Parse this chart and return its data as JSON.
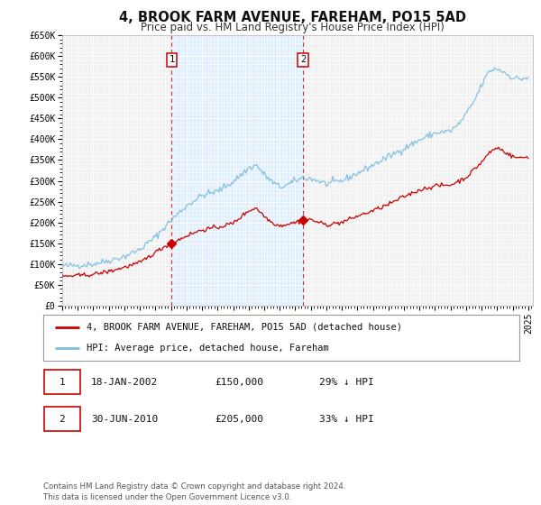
{
  "title": "4, BROOK FARM AVENUE, FAREHAM, PO15 5AD",
  "subtitle": "Price paid vs. HM Land Registry's House Price Index (HPI)",
  "ylim": [
    0,
    650000
  ],
  "yticks": [
    0,
    50000,
    100000,
    150000,
    200000,
    250000,
    300000,
    350000,
    400000,
    450000,
    500000,
    550000,
    600000,
    650000
  ],
  "ytick_labels": [
    "£0",
    "£50K",
    "£100K",
    "£150K",
    "£200K",
    "£250K",
    "£300K",
    "£350K",
    "£400K",
    "£450K",
    "£500K",
    "£550K",
    "£600K",
    "£650K"
  ],
  "xlim_start": 1995.0,
  "xlim_end": 2025.3,
  "background_color": "#ffffff",
  "plot_bg_color": "#f0f0f0",
  "grid_color": "#ffffff",
  "hpi_color": "#7fbfdf",
  "price_color": "#cc0000",
  "marker_color": "#cc0000",
  "sale1_x": 2002.05,
  "sale1_y": 150000,
  "sale1_label": "1",
  "sale2_x": 2010.5,
  "sale2_y": 205000,
  "sale2_label": "2",
  "vline_color": "#cc0000",
  "shaded_color": "#ddeeff",
  "legend_label_price": "4, BROOK FARM AVENUE, FAREHAM, PO15 5AD (detached house)",
  "legend_label_hpi": "HPI: Average price, detached house, Fareham",
  "table_row1": [
    "1",
    "18-JAN-2002",
    "£150,000",
    "29% ↓ HPI"
  ],
  "table_row2": [
    "2",
    "30-JUN-2010",
    "£205,000",
    "33% ↓ HPI"
  ],
  "footnote": "Contains HM Land Registry data © Crown copyright and database right 2024.\nThis data is licensed under the Open Government Licence v3.0.",
  "title_fontsize": 10.5,
  "subtitle_fontsize": 8.5,
  "tick_fontsize": 7,
  "legend_fontsize": 7.5,
  "table_fontsize": 8,
  "footnote_fontsize": 6.2
}
